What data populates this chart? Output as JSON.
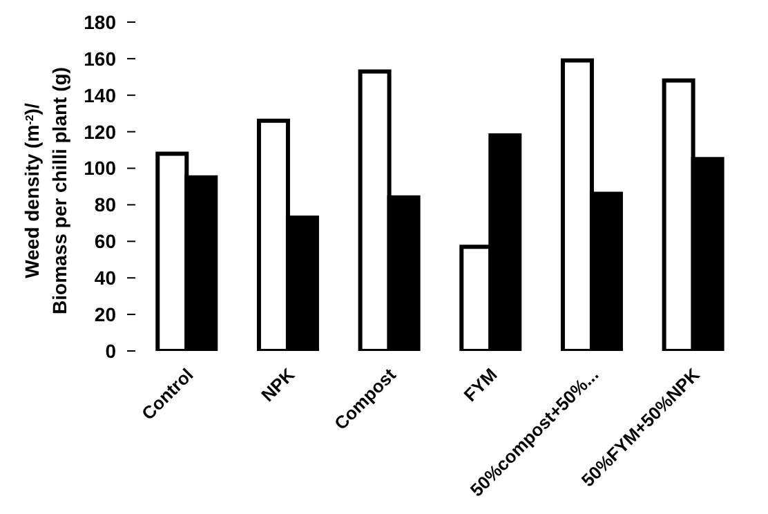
{
  "chart_data": {
    "type": "bar",
    "ylabel": "Weed density (m$^{-2}$)/\nBiomass per chilli plant (g)",
    "categories": [
      "Control",
      "NPK",
      "Compost",
      "FYM",
      "50%compost+50%...",
      "50%FYM+50%NPK"
    ],
    "series": [
      {
        "color": "#ffffff",
        "values": [
          108,
          126,
          153,
          57,
          159,
          148
        ]
      },
      {
        "color": "#000000",
        "values": [
          95,
          73,
          84,
          118,
          86,
          105
        ]
      }
    ],
    "ylim": [
      0,
      180
    ],
    "yticks": [
      0,
      20,
      40,
      60,
      80,
      100,
      120,
      140,
      160,
      180
    ],
    "grid": false,
    "legend": false
  }
}
